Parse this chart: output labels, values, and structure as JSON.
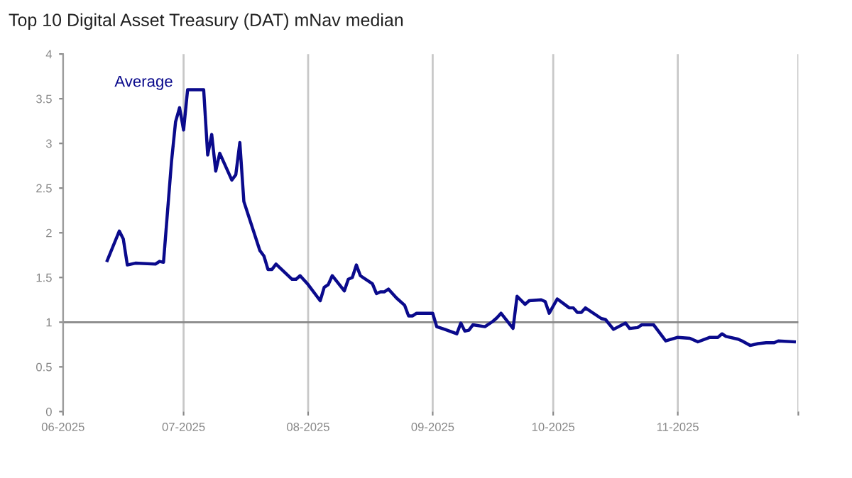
{
  "chart_data": {
    "type": "line",
    "title": "Top 10 Digital Asset Treasury (DAT) mNav median",
    "x": [
      "2025-06-12",
      "2025-06-15",
      "2025-06-16",
      "2025-06-17",
      "2025-06-19",
      "2025-06-24",
      "2025-06-25",
      "2025-06-26",
      "2025-06-28",
      "2025-06-29",
      "2025-06-30",
      "2025-07-01",
      "2025-07-02",
      "2025-07-06",
      "2025-07-07",
      "2025-07-08",
      "2025-07-09",
      "2025-07-10",
      "2025-07-13",
      "2025-07-14",
      "2025-07-15",
      "2025-07-16",
      "2025-07-20",
      "2025-07-21",
      "2025-07-22",
      "2025-07-23",
      "2025-07-24",
      "2025-07-28",
      "2025-07-29",
      "2025-07-30",
      "2025-08-01",
      "2025-08-04",
      "2025-08-05",
      "2025-08-06",
      "2025-08-07",
      "2025-08-10",
      "2025-08-11",
      "2025-08-12",
      "2025-08-13",
      "2025-08-14",
      "2025-08-17",
      "2025-08-18",
      "2025-08-19",
      "2025-08-20",
      "2025-08-21",
      "2025-08-23",
      "2025-08-25",
      "2025-08-26",
      "2025-08-27",
      "2025-08-28",
      "2025-08-30",
      "2025-09-01",
      "2025-09-02",
      "2025-09-04",
      "2025-09-07",
      "2025-09-08",
      "2025-09-09",
      "2025-09-10",
      "2025-09-11",
      "2025-09-14",
      "2025-09-16",
      "2025-09-17",
      "2025-09-18",
      "2025-09-21",
      "2025-09-22",
      "2025-09-24",
      "2025-09-25",
      "2025-09-28",
      "2025-09-29",
      "2025-09-30",
      "2025-10-02",
      "2025-10-05",
      "2025-10-06",
      "2025-10-07",
      "2025-10-08",
      "2025-10-09",
      "2025-10-13",
      "2025-10-14",
      "2025-10-16",
      "2025-10-19",
      "2025-10-20",
      "2025-10-22",
      "2025-10-23",
      "2025-10-26",
      "2025-10-28",
      "2025-10-29",
      "2025-11-01",
      "2025-11-04",
      "2025-11-06",
      "2025-11-09",
      "2025-11-11",
      "2025-11-12",
      "2025-11-13",
      "2025-11-16",
      "2025-11-17",
      "2025-11-19",
      "2025-11-21",
      "2025-11-23",
      "2025-11-25",
      "2025-11-26",
      "2025-11-30"
    ],
    "series": [
      {
        "name": "Average",
        "color": "#0a0a8c",
        "values": [
          1.69,
          2.02,
          1.93,
          1.64,
          1.66,
          1.65,
          1.68,
          1.67,
          2.8,
          3.24,
          3.4,
          3.15,
          3.6,
          3.6,
          2.87,
          3.1,
          2.69,
          2.89,
          2.59,
          2.65,
          3.01,
          2.35,
          1.8,
          1.74,
          1.59,
          1.59,
          1.65,
          1.48,
          1.48,
          1.52,
          1.42,
          1.24,
          1.39,
          1.42,
          1.52,
          1.35,
          1.48,
          1.5,
          1.64,
          1.52,
          1.43,
          1.32,
          1.34,
          1.34,
          1.37,
          1.27,
          1.19,
          1.07,
          1.07,
          1.1,
          1.1,
          1.1,
          0.95,
          0.92,
          0.87,
          0.99,
          0.9,
          0.91,
          0.97,
          0.95,
          1.01,
          1.05,
          1.1,
          0.93,
          1.29,
          1.2,
          1.24,
          1.25,
          1.23,
          1.1,
          1.26,
          1.16,
          1.16,
          1.11,
          1.11,
          1.16,
          1.04,
          1.03,
          0.92,
          0.99,
          0.93,
          0.94,
          0.97,
          0.97,
          0.85,
          0.79,
          0.83,
          0.82,
          0.78,
          0.83,
          0.83,
          0.87,
          0.84,
          0.81,
          0.79,
          0.74,
          0.76,
          0.77,
          0.77,
          0.79,
          0.78
        ]
      }
    ],
    "xlim": [
      "2025-06-01",
      "2025-12-01"
    ],
    "xticks": [
      {
        "value": "2025-06-01",
        "label": "06-2025"
      },
      {
        "value": "2025-07-01",
        "label": "07-2025"
      },
      {
        "value": "2025-08-01",
        "label": "08-2025"
      },
      {
        "value": "2025-09-01",
        "label": "09-2025"
      },
      {
        "value": "2025-10-01",
        "label": "10-2025"
      },
      {
        "value": "2025-11-01",
        "label": "11-2025"
      },
      {
        "value": "2025-12-01",
        "label": null
      }
    ],
    "ylim": [
      0,
      4
    ],
    "yticks": [
      0,
      0.5,
      1,
      1.5,
      2,
      2.5,
      3,
      3.5,
      4
    ],
    "ref_lines": [
      {
        "axis": "y",
        "value": 1,
        "color": "#888888"
      }
    ],
    "grid": "x",
    "legend": false,
    "marker": "none",
    "line_style": "solid"
  }
}
